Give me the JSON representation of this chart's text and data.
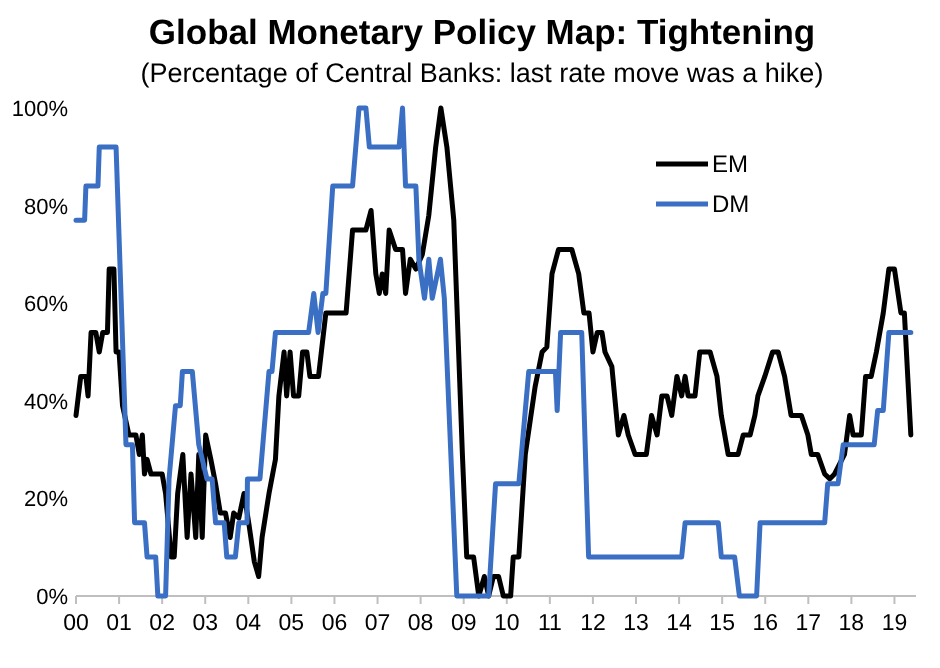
{
  "chart_data": {
    "type": "line",
    "title": "Global Monetary Policy Map: Tightening",
    "subtitle": "(Percentage of Central Banks: last rate move was a hike)",
    "xlim": [
      2000,
      2019.5
    ],
    "xticks": [
      {
        "value": 2000,
        "label": "00"
      },
      {
        "value": 2001,
        "label": "01"
      },
      {
        "value": 2002,
        "label": "02"
      },
      {
        "value": 2003,
        "label": "03"
      },
      {
        "value": 2004,
        "label": "04"
      },
      {
        "value": 2005,
        "label": "05"
      },
      {
        "value": 2006,
        "label": "06"
      },
      {
        "value": 2007,
        "label": "07"
      },
      {
        "value": 2008,
        "label": "08"
      },
      {
        "value": 2009,
        "label": "09"
      },
      {
        "value": 2010,
        "label": "10"
      },
      {
        "value": 2011,
        "label": "11"
      },
      {
        "value": 2012,
        "label": "12"
      },
      {
        "value": 2013,
        "label": "13"
      },
      {
        "value": 2014,
        "label": "14"
      },
      {
        "value": 2015,
        "label": "15"
      },
      {
        "value": 2016,
        "label": "16"
      },
      {
        "value": 2017,
        "label": "17"
      },
      {
        "value": 2018,
        "label": "18"
      },
      {
        "value": 2019,
        "label": "19"
      }
    ],
    "ylim": [
      0,
      100
    ],
    "yticks": [
      {
        "value": 0,
        "label": "0%"
      },
      {
        "value": 20,
        "label": "20%"
      },
      {
        "value": 40,
        "label": "40%"
      },
      {
        "value": 60,
        "label": "60%"
      },
      {
        "value": 80,
        "label": "80%"
      },
      {
        "value": 100,
        "label": "100%"
      }
    ],
    "grid": false,
    "legend": "top right",
    "marker": "none",
    "line_style": "solid",
    "series": [
      {
        "name": "EM",
        "color": "#000000",
        "x": [
          2000.0,
          2000.11,
          2000.23,
          2000.28,
          2000.35,
          2000.46,
          2000.54,
          2000.62,
          2000.73,
          2000.77,
          2000.88,
          2000.93,
          2001.0,
          2001.08,
          2001.23,
          2001.39,
          2001.47,
          2001.54,
          2001.59,
          2001.65,
          2001.74,
          2002.0,
          2002.08,
          2002.21,
          2002.28,
          2002.36,
          2002.48,
          2002.58,
          2002.67,
          2002.78,
          2002.85,
          2002.93,
          2003.01,
          2003.13,
          2003.24,
          2003.35,
          2003.47,
          2003.58,
          2003.66,
          2003.78,
          2003.9,
          2004.01,
          2004.14,
          2004.24,
          2004.32,
          2004.48,
          2004.63,
          2004.71,
          2004.83,
          2004.89,
          2004.97,
          2005.05,
          2005.17,
          2005.26,
          2005.36,
          2005.43,
          2005.63,
          2005.8,
          2006.27,
          2006.42,
          2006.73,
          2006.85,
          2006.96,
          2007.04,
          2007.11,
          2007.19,
          2007.27,
          2007.42,
          2007.58,
          2007.65,
          2007.76,
          2007.89,
          2008.04,
          2008.19,
          2008.35,
          2008.47,
          2008.61,
          2008.77,
          2008.97,
          2009.07,
          2009.23,
          2009.35,
          2009.48,
          2009.58,
          2009.69,
          2009.81,
          2009.92,
          2010.09,
          2010.15,
          2010.28,
          2010.43,
          2010.66,
          2010.82,
          2010.93,
          2011.05,
          2011.2,
          2011.51,
          2011.67,
          2011.79,
          2011.91,
          2012.0,
          2012.1,
          2012.21,
          2012.28,
          2012.44,
          2012.59,
          2012.72,
          2012.82,
          2012.98,
          2013.24,
          2013.36,
          2013.49,
          2013.6,
          2013.72,
          2013.83,
          2013.95,
          2014.06,
          2014.14,
          2014.21,
          2014.37,
          2014.48,
          2014.72,
          2014.88,
          2014.98,
          2015.14,
          2015.37,
          2015.49,
          2015.65,
          2015.76,
          2015.83,
          2015.99,
          2016.17,
          2016.3,
          2016.45,
          2016.6,
          2016.84,
          2016.99,
          2017.07,
          2017.22,
          2017.38,
          2017.5,
          2017.61,
          2017.84,
          2017.96,
          2018.04,
          2018.23,
          2018.33,
          2018.46,
          2018.58,
          2018.74,
          2018.87,
          2019.0,
          2019.15,
          2019.23,
          2019.38
        ],
        "values": [
          37,
          45,
          45,
          41,
          54,
          54,
          50,
          54,
          54,
          67,
          67,
          50,
          50,
          39,
          33,
          33,
          29,
          33,
          25,
          28,
          25,
          25,
          21,
          8,
          8,
          21,
          29,
          12,
          25,
          12,
          29,
          12,
          33,
          28,
          23,
          17,
          17,
          12,
          17,
          16,
          21,
          15,
          7,
          4,
          12,
          21,
          28,
          41,
          50,
          41,
          50,
          41,
          41,
          50,
          50,
          45,
          45,
          58,
          58,
          75,
          75,
          79,
          66,
          62,
          66,
          62,
          75,
          71,
          71,
          62,
          69,
          67,
          70,
          78,
          92,
          100,
          92,
          77,
          29,
          8,
          8,
          0,
          4,
          0,
          4,
          4,
          0,
          0,
          8,
          8,
          29,
          43,
          50,
          51,
          66,
          71,
          71,
          66,
          58,
          58,
          50,
          54,
          54,
          50,
          47,
          33,
          37,
          33,
          29,
          29,
          37,
          33,
          41,
          41,
          37,
          45,
          41,
          45,
          41,
          41,
          50,
          50,
          45,
          37,
          29,
          29,
          33,
          33,
          37,
          41,
          45,
          50,
          50,
          45,
          37,
          37,
          33,
          29,
          29,
          25,
          24,
          25,
          29,
          37,
          33,
          33,
          45,
          45,
          50,
          58,
          67,
          67,
          58,
          58,
          33
        ]
      },
      {
        "name": "DM",
        "color": "#3a6fc4",
        "x": [
          2000.0,
          2000.2,
          2000.23,
          2000.51,
          2000.54,
          2000.93,
          2001.16,
          2001.31,
          2001.36,
          2001.59,
          2001.65,
          2001.85,
          2001.9,
          2002.08,
          2002.16,
          2002.31,
          2002.42,
          2002.47,
          2002.7,
          2002.85,
          2003.04,
          2003.16,
          2003.24,
          2003.44,
          2003.5,
          2003.7,
          2003.78,
          2003.97,
          2003.98,
          2004.27,
          2004.48,
          2004.55,
          2004.63,
          2005.4,
          2005.52,
          2005.62,
          2005.73,
          2005.8,
          2005.96,
          2006.42,
          2006.57,
          2006.73,
          2006.81,
          2007.5,
          2007.58,
          2007.65,
          2007.89,
          2007.96,
          2008.09,
          2008.19,
          2008.27,
          2008.46,
          2008.55,
          2008.84,
          2009.58,
          2009.74,
          2010.28,
          2010.51,
          2011.13,
          2011.17,
          2011.25,
          2011.74,
          2011.9,
          2014.06,
          2014.14,
          2014.91,
          2014.98,
          2015.29,
          2015.4,
          2015.8,
          2015.88,
          2017.38,
          2017.45,
          2017.69,
          2017.81,
          2018.53,
          2018.61,
          2018.74,
          2018.87,
          2019.38
        ],
        "values": [
          77,
          77,
          84,
          84,
          92,
          92,
          31,
          31,
          15,
          15,
          8,
          8,
          0,
          0,
          24,
          39,
          39,
          46,
          46,
          31,
          24,
          24,
          15,
          15,
          8,
          8,
          15,
          15,
          24,
          24,
          46,
          46,
          54,
          54,
          62,
          54,
          62,
          62,
          84,
          84,
          100,
          100,
          92,
          92,
          100,
          84,
          84,
          69,
          61,
          69,
          61,
          69,
          61,
          0,
          0,
          23,
          23,
          46,
          46,
          38,
          54,
          54,
          8,
          8,
          15,
          15,
          8,
          8,
          0,
          0,
          15,
          15,
          23,
          23,
          31,
          31,
          38,
          38,
          54,
          54
        ]
      }
    ]
  }
}
